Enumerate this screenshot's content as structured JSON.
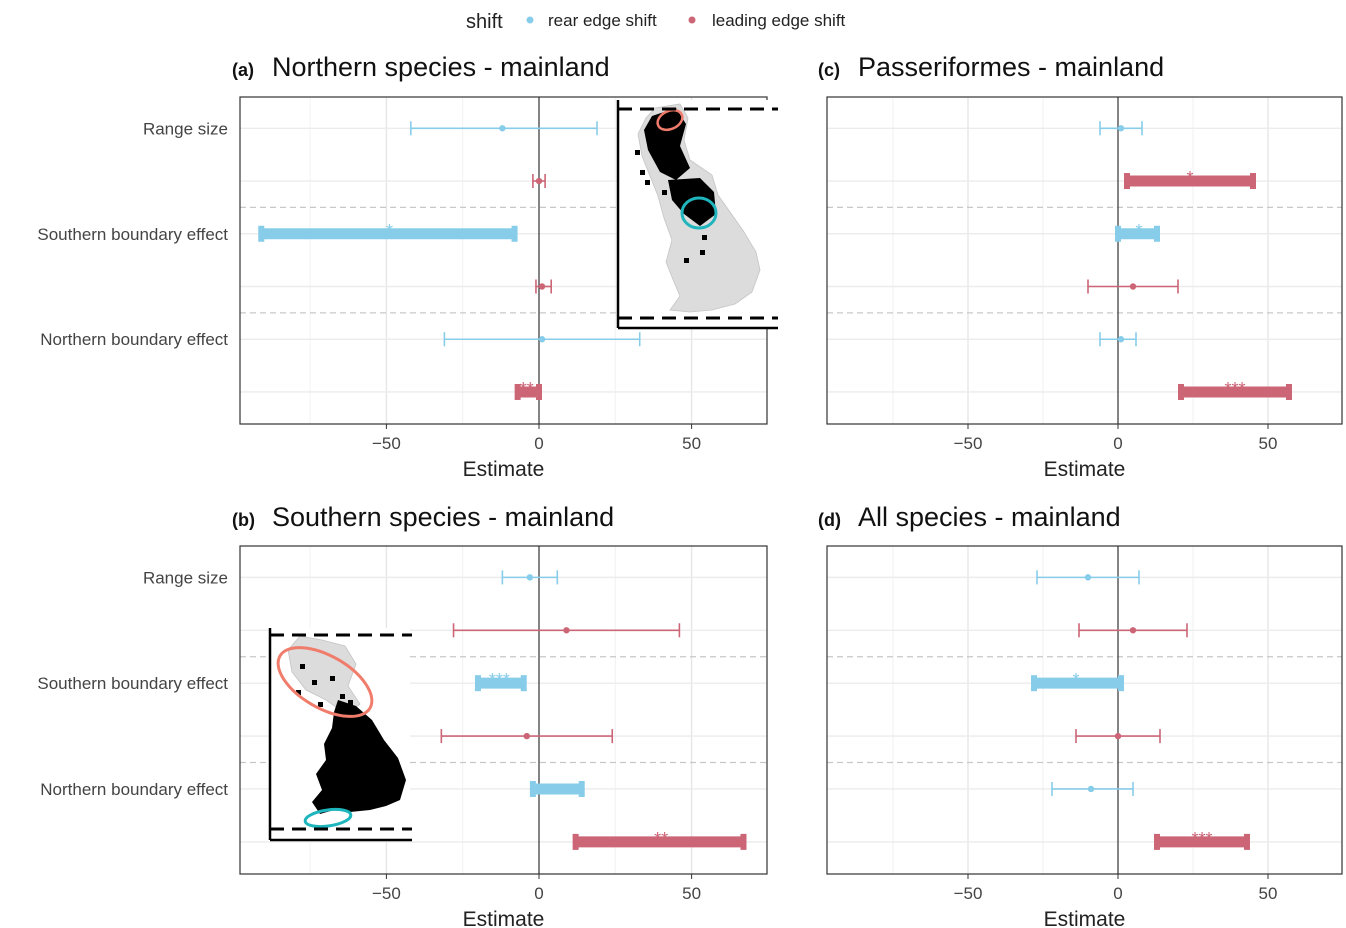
{
  "legend": {
    "title": "shift",
    "items": [
      {
        "label": "rear edge shift",
        "color": "#87CDEA"
      },
      {
        "label": "leading edge shift",
        "color": "#CC6677"
      }
    ]
  },
  "colors": {
    "rear": "#87CDEA",
    "leading": "#CC6677",
    "inset_highlight_north": "#F07C6C",
    "inset_highlight_south": "#1FB5BD"
  },
  "chart_data": [
    {
      "type": "forest",
      "panel": "(a)",
      "title": "Northern species - mainland",
      "xlabel": "Estimate",
      "xticks": [
        -50,
        0,
        50
      ],
      "xlim": [
        -98,
        75
      ],
      "categories": [
        "Range size",
        "Southern boundary effect",
        "Northern boundary effect"
      ],
      "inset": "north-map",
      "rows": [
        {
          "category": "Range size",
          "series": "rear",
          "est": -12,
          "lo": -42,
          "hi": 19,
          "sig": "",
          "thick": false
        },
        {
          "category": "Range size",
          "series": "leading",
          "est": 0,
          "lo": -2,
          "hi": 2,
          "sig": "",
          "thick": false
        },
        {
          "category": "Southern boundary effect",
          "series": "rear",
          "est": -49,
          "lo": -91,
          "hi": -8,
          "sig": "*",
          "thick": true
        },
        {
          "category": "Southern boundary effect",
          "series": "leading",
          "est": 1,
          "lo": -1,
          "hi": 4,
          "sig": "",
          "thick": false
        },
        {
          "category": "Northern boundary effect",
          "series": "rear",
          "est": 1,
          "lo": -31,
          "hi": 33,
          "sig": "",
          "thick": false
        },
        {
          "category": "Northern boundary effect",
          "series": "leading",
          "est": -4,
          "lo": -7,
          "hi": 0,
          "sig": "**",
          "thick": true
        }
      ]
    },
    {
      "type": "forest",
      "panel": "(b)",
      "title": "Southern species - mainland",
      "xlabel": "Estimate",
      "xticks": [
        -50,
        0,
        50
      ],
      "xlim": [
        -98,
        75
      ],
      "categories": [
        "Range size",
        "Southern boundary effect",
        "Northern boundary effect"
      ],
      "inset": "south-map",
      "rows": [
        {
          "category": "Range size",
          "series": "rear",
          "est": -3,
          "lo": -12,
          "hi": 6,
          "sig": "",
          "thick": false
        },
        {
          "category": "Range size",
          "series": "leading",
          "est": 9,
          "lo": -28,
          "hi": 46,
          "sig": "",
          "thick": false
        },
        {
          "category": "Southern boundary effect",
          "series": "rear",
          "est": -13,
          "lo": -20,
          "hi": -5,
          "sig": "***",
          "thick": true
        },
        {
          "category": "Southern boundary effect",
          "series": "leading",
          "est": -4,
          "lo": -32,
          "hi": 24,
          "sig": "",
          "thick": false
        },
        {
          "category": "Northern boundary effect",
          "series": "rear",
          "est": 6,
          "lo": -2,
          "hi": 14,
          "sig": "",
          "thick": true
        },
        {
          "category": "Northern boundary effect",
          "series": "leading",
          "est": 40,
          "lo": 12,
          "hi": 67,
          "sig": "**",
          "thick": true
        }
      ]
    },
    {
      "type": "forest",
      "panel": "(c)",
      "title": "Passeriformes - mainland",
      "xlabel": "Estimate",
      "xticks": [
        -50,
        0,
        50
      ],
      "xlim": [
        -97,
        75
      ],
      "categories": [
        "Range size",
        "Southern boundary effect",
        "Northern boundary effect"
      ],
      "rows": [
        {
          "category": "Range size",
          "series": "rear",
          "est": 1,
          "lo": -6,
          "hi": 8,
          "sig": "",
          "thick": false
        },
        {
          "category": "Range size",
          "series": "leading",
          "est": 24,
          "lo": 3,
          "hi": 45,
          "sig": "*",
          "thick": true
        },
        {
          "category": "Southern boundary effect",
          "series": "rear",
          "est": 7,
          "lo": 0,
          "hi": 13,
          "sig": "*",
          "thick": true
        },
        {
          "category": "Southern boundary effect",
          "series": "leading",
          "est": 5,
          "lo": -10,
          "hi": 20,
          "sig": "",
          "thick": false
        },
        {
          "category": "Northern boundary effect",
          "series": "rear",
          "est": 1,
          "lo": -6,
          "hi": 6,
          "sig": "",
          "thick": false
        },
        {
          "category": "Northern boundary effect",
          "series": "leading",
          "est": 39,
          "lo": 21,
          "hi": 57,
          "sig": "***",
          "thick": true
        }
      ]
    },
    {
      "type": "forest",
      "panel": "(d)",
      "title": "All species - mainland",
      "xlabel": "Estimate",
      "xticks": [
        -50,
        0,
        50
      ],
      "xlim": [
        -97,
        75
      ],
      "categories": [
        "Range size",
        "Southern boundary effect",
        "Northern boundary effect"
      ],
      "rows": [
        {
          "category": "Range size",
          "series": "rear",
          "est": -10,
          "lo": -27,
          "hi": 7,
          "sig": "",
          "thick": false
        },
        {
          "category": "Range size",
          "series": "leading",
          "est": 5,
          "lo": -13,
          "hi": 23,
          "sig": "",
          "thick": false
        },
        {
          "category": "Southern boundary effect",
          "series": "rear",
          "est": -14,
          "lo": -28,
          "hi": 1,
          "sig": "*",
          "thick": true
        },
        {
          "category": "Southern boundary effect",
          "series": "leading",
          "est": 0,
          "lo": -14,
          "hi": 14,
          "sig": "",
          "thick": false
        },
        {
          "category": "Northern boundary effect",
          "series": "rear",
          "est": -9,
          "lo": -22,
          "hi": 5,
          "sig": "",
          "thick": false
        },
        {
          "category": "Northern boundary effect",
          "series": "leading",
          "est": 28,
          "lo": 13,
          "hi": 43,
          "sig": "***",
          "thick": true
        }
      ]
    }
  ]
}
